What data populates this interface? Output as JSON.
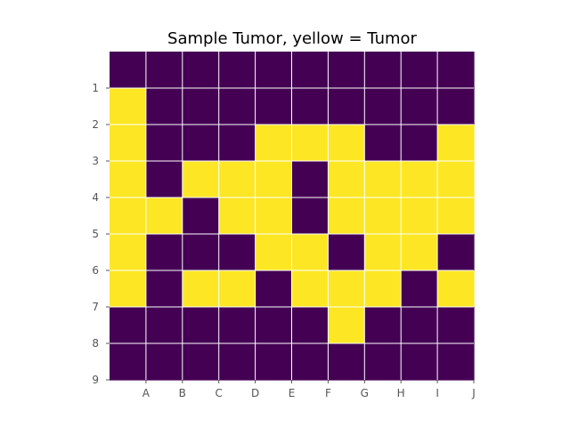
{
  "chart_data": {
    "type": "heatmap",
    "title": "Sample Tumor, yellow = Tumor",
    "xlabel": "",
    "ylabel": "",
    "x_tick_labels": [
      "A",
      "B",
      "C",
      "D",
      "E",
      "F",
      "G",
      "H",
      "I",
      "J"
    ],
    "y_tick_labels": [
      "1",
      "2",
      "3",
      "4",
      "5",
      "6",
      "7",
      "8",
      "9"
    ],
    "rows": 9,
    "cols": 10,
    "grid": true,
    "legend": "none",
    "colors": {
      "0": "#440154",
      "1": "#fde725",
      "grid_line": "#ffffff",
      "tick": "#555555",
      "title": "#000000"
    },
    "matrix": [
      [
        0,
        0,
        0,
        0,
        0,
        0,
        0,
        0,
        0,
        0
      ],
      [
        1,
        0,
        0,
        0,
        0,
        0,
        0,
        0,
        0,
        0
      ],
      [
        1,
        0,
        0,
        0,
        1,
        1,
        1,
        0,
        0,
        1
      ],
      [
        1,
        0,
        1,
        1,
        1,
        0,
        1,
        1,
        1,
        1
      ],
      [
        1,
        1,
        0,
        1,
        1,
        0,
        1,
        1,
        1,
        1
      ],
      [
        1,
        0,
        0,
        0,
        1,
        1,
        0,
        1,
        1,
        0
      ],
      [
        1,
        0,
        1,
        1,
        0,
        1,
        1,
        1,
        0,
        1
      ],
      [
        0,
        0,
        0,
        0,
        0,
        0,
        1,
        0,
        0,
        0
      ],
      [
        0,
        0,
        0,
        0,
        0,
        0,
        0,
        0,
        0,
        0
      ]
    ]
  }
}
